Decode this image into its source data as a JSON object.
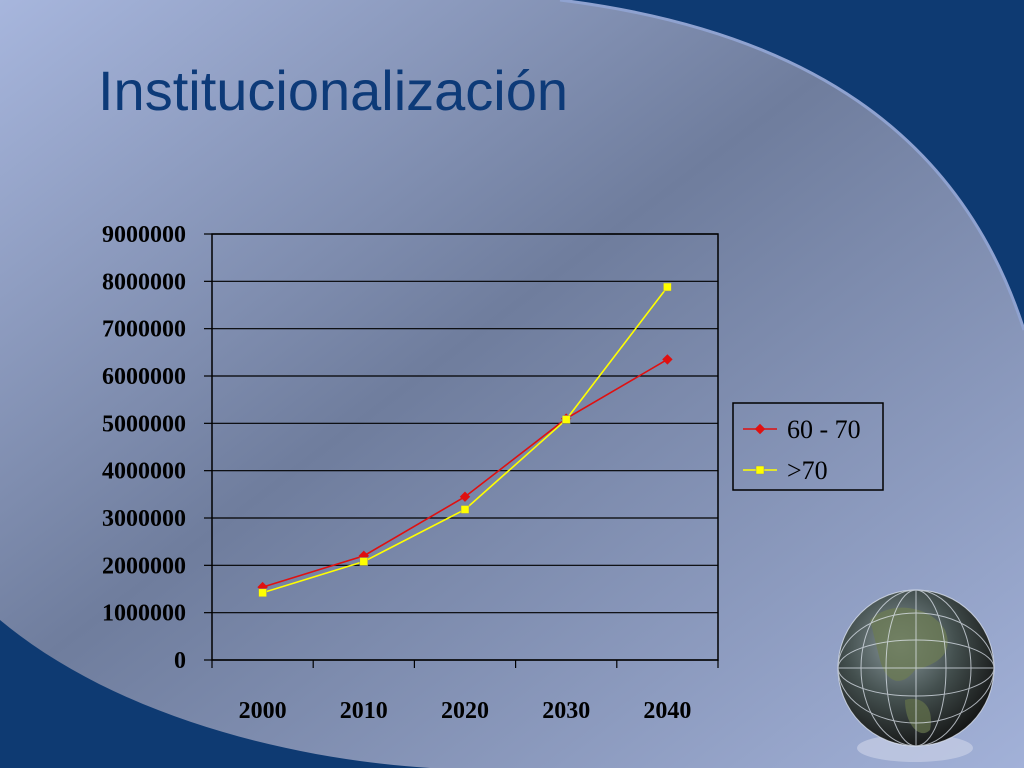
{
  "slide": {
    "title": "Institucionalización",
    "colors": {
      "title": "#0d3a78",
      "bg_light": "#a9b8de",
      "bg_dark": "#6a7896",
      "band": "#0e3a72"
    }
  },
  "decor": {
    "globe": "globe-icon"
  },
  "chart_data": {
    "type": "line",
    "categories": [
      "2000",
      "2010",
      "2020",
      "2030",
      "2040"
    ],
    "ylim": [
      0,
      9000000
    ],
    "yticks": [
      "0",
      "1000000",
      "2000000",
      "3000000",
      "4000000",
      "5000000",
      "6000000",
      "7000000",
      "8000000",
      "9000000"
    ],
    "grid": true,
    "legend_position": "right",
    "series": [
      {
        "name": "60 - 70",
        "values": [
          1540000,
          2200000,
          3450000,
          5100000,
          6350000
        ],
        "color": "#e01010",
        "marker": "diamond"
      },
      {
        "name": ">70",
        "values": [
          1420000,
          2080000,
          3180000,
          5080000,
          7880000
        ],
        "color": "#ffff00",
        "marker": "square"
      }
    ]
  }
}
